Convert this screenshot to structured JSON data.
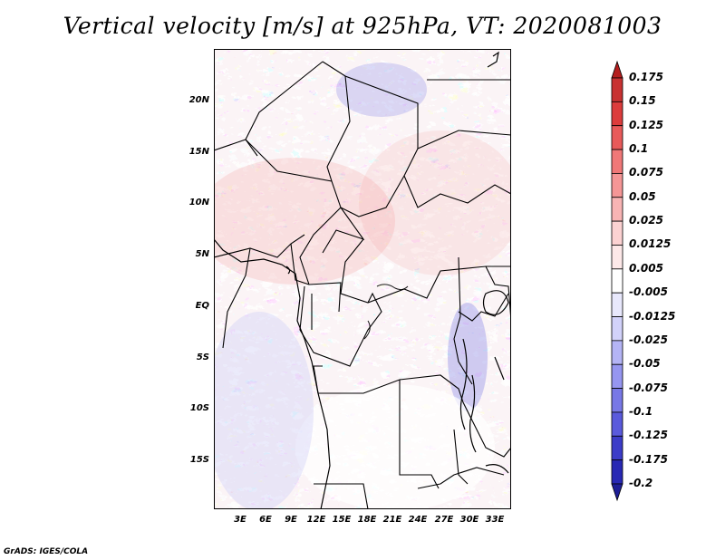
{
  "title": "Vertical velocity [m/s] at 925hPa, VT: 2020081003",
  "credit": "GrADS: IGES/COLA",
  "lat_labels": [
    "20N",
    "15N",
    "10N",
    "5N",
    "EQ",
    "5S",
    "10S",
    "15S"
  ],
  "lon_labels": [
    "3E",
    "6E",
    "9E",
    "12E",
    "15E",
    "18E",
    "21E",
    "24E",
    "27E",
    "30E",
    "33E"
  ],
  "colorbar": {
    "labels": [
      "0.175",
      "0.15",
      "0.125",
      "0.1",
      "0.075",
      "0.05",
      "0.025",
      "0.0125",
      "0.005",
      "-0.005",
      "-0.0125",
      "-0.025",
      "-0.05",
      "-0.075",
      "-0.1",
      "-0.125",
      "-0.175",
      "-0.2"
    ],
    "colors": [
      "#b41e1e",
      "#c83232",
      "#dc3c3c",
      "#e85a5a",
      "#f07878",
      "#f59696",
      "#f8b4b4",
      "#fcd2d2",
      "#fde8e8",
      "#ffffff",
      "#e8e8fc",
      "#d2d2fa",
      "#b4b4f5",
      "#9696f0",
      "#7878e6",
      "#5a5adc",
      "#3c3cc8",
      "#2828b4",
      "#1e1e96"
    ]
  },
  "domain": {
    "lon_range": [
      0,
      35
    ],
    "lat_range": [
      -20,
      25
    ]
  }
}
